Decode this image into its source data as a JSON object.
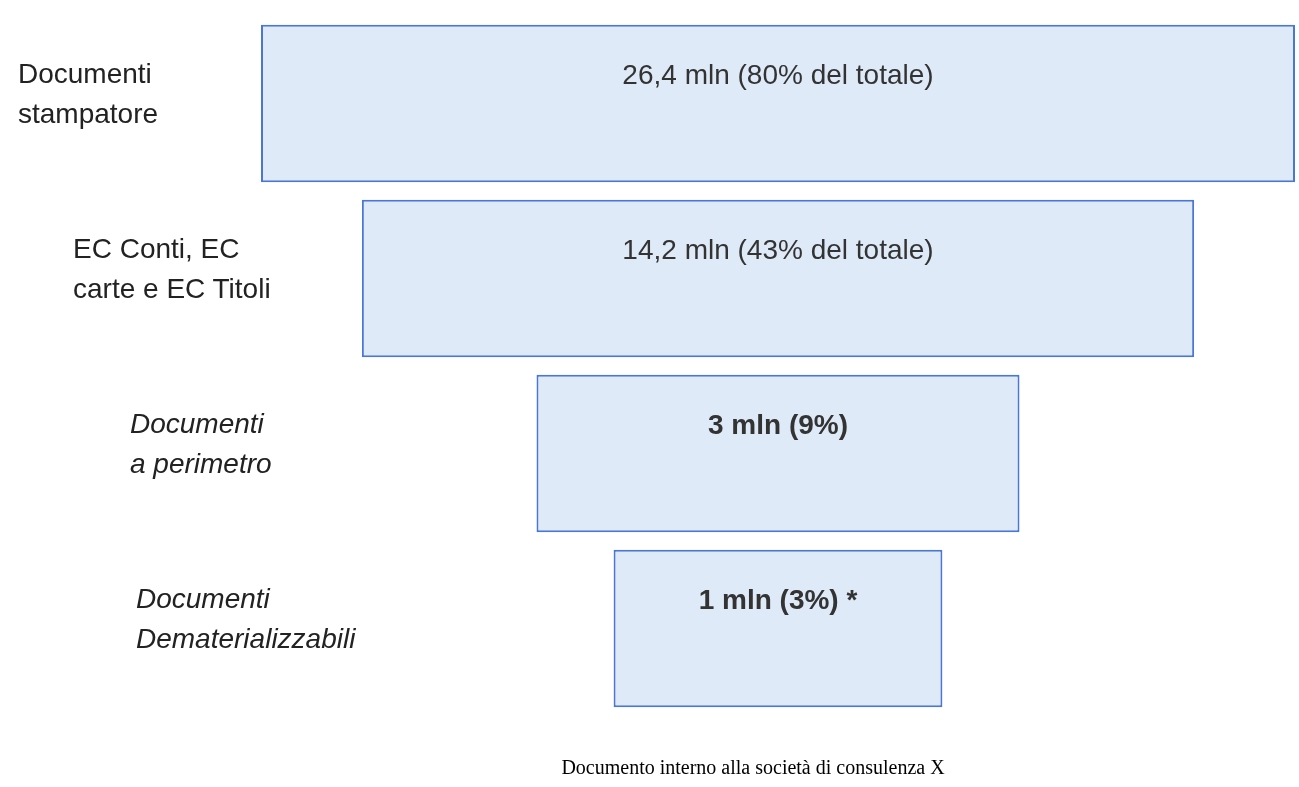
{
  "chart_data": {
    "type": "other",
    "categories": [
      "Documenti stampatore",
      "EC Conti, EC carte e EC Titoli",
      "Documenti a perimetro",
      "Documenti Dematerializzabili"
    ],
    "values": [
      26.4,
      14.2,
      3,
      1
    ],
    "value_labels": [
      "26,4 mln (80% del totale)",
      "14,2 mln (43% del totale)",
      "3 mln (9%)",
      "1 mln (3%) *"
    ],
    "color": "#dfeaf8",
    "annotations": [
      "Documento interno alla società di consulenza X"
    ]
  }
}
